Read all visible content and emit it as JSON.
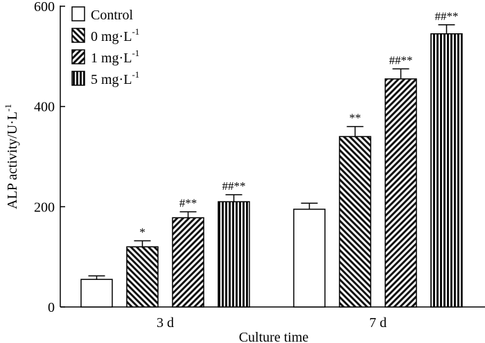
{
  "chart_data": {
    "type": "bar",
    "title": "",
    "xlabel": "Culture time",
    "ylabel": "ALP activity/U·L",
    "ylabel_superscript": "-1",
    "ylim": [
      0,
      600
    ],
    "yticks": [
      0,
      200,
      400,
      600
    ],
    "categories": [
      "3 d",
      "7 d"
    ],
    "legend_position": "top-left",
    "series": [
      {
        "name": "Control",
        "unit": "",
        "superscript": "",
        "pattern": "none",
        "values": [
          55,
          195
        ],
        "errors": [
          7,
          12
        ],
        "annotations": [
          "",
          ""
        ]
      },
      {
        "name": "0 mg·L",
        "unit": "",
        "superscript": "-1",
        "pattern": "backslash",
        "values": [
          120,
          340
        ],
        "errors": [
          12,
          20
        ],
        "annotations": [
          "*",
          "**"
        ]
      },
      {
        "name": "1 mg·L",
        "unit": "",
        "superscript": "-1",
        "pattern": "slash",
        "values": [
          178,
          455
        ],
        "errors": [
          12,
          20
        ],
        "annotations": [
          "#**",
          "##**"
        ]
      },
      {
        "name": "5 mg·L",
        "unit": "",
        "superscript": "-1",
        "pattern": "vertical",
        "values": [
          210,
          545
        ],
        "errors": [
          14,
          18
        ],
        "annotations": [
          "##**",
          "##**"
        ]
      }
    ]
  }
}
